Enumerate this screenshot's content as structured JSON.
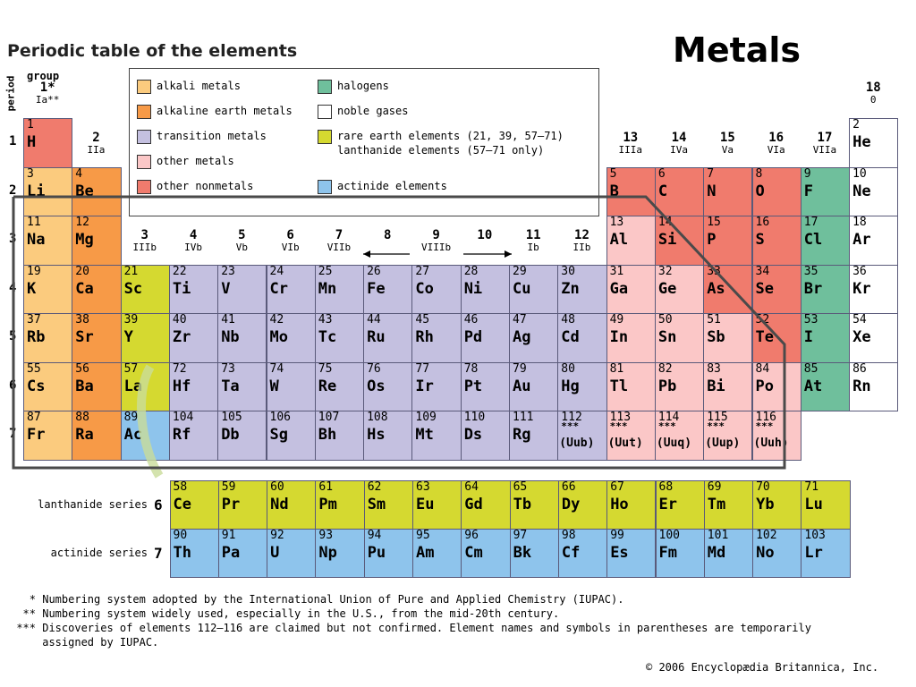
{
  "title": "Periodic table of the elements",
  "heading": "Metals",
  "labels": {
    "period": "period",
    "group": "group"
  },
  "colors": {
    "alkali": "#fbcb7e",
    "alkaline": "#f79a47",
    "transition": "#c4c0e0",
    "other_metal": "#fbc7c7",
    "nonmetal": "#f07b6d",
    "halogen": "#6fbf9c",
    "noble": "#ffffff",
    "rare": "#d5d930",
    "actinide": "#8ec4ec"
  },
  "legend": [
    {
      "key": "alkali",
      "label": "alkali metals"
    },
    {
      "key": "alkaline",
      "label": "alkaline earth metals"
    },
    {
      "key": "transition",
      "label": "transition metals"
    },
    {
      "key": "other_metal",
      "label": "other metals"
    },
    {
      "key": "nonmetal",
      "label": "other nonmetals"
    },
    {
      "key": "halogen",
      "label": "halogens"
    },
    {
      "key": "noble",
      "label": "noble gases"
    },
    {
      "key": "rare",
      "label": "rare earth elements (21, 39, 57–71)",
      "label2": "lanthanide elements (57–71 only)"
    },
    {
      "key": "actinide",
      "label": "actinide elements"
    }
  ],
  "groups": [
    {
      "n": "1*",
      "r": "Ia**"
    },
    {
      "n": "2",
      "r": "IIa"
    },
    {
      "n": "3",
      "r": "IIIb"
    },
    {
      "n": "4",
      "r": "IVb"
    },
    {
      "n": "5",
      "r": "Vb"
    },
    {
      "n": "6",
      "r": "VIb"
    },
    {
      "n": "7",
      "r": "VIIb"
    },
    {
      "n": "8",
      "r": ""
    },
    {
      "n": "9",
      "r": "VIIIb"
    },
    {
      "n": "10",
      "r": ""
    },
    {
      "n": "11",
      "r": "Ib"
    },
    {
      "n": "12",
      "r": "IIb"
    },
    {
      "n": "13",
      "r": "IIIa"
    },
    {
      "n": "14",
      "r": "IVa"
    },
    {
      "n": "15",
      "r": "Va"
    },
    {
      "n": "16",
      "r": "VIa"
    },
    {
      "n": "17",
      "r": "VIIa"
    },
    {
      "n": "18",
      "r": "0"
    }
  ],
  "periods": [
    "1",
    "2",
    "3",
    "4",
    "5",
    "6",
    "7"
  ],
  "elements": [
    {
      "z": "1",
      "s": "H",
      "row": 1,
      "col": 1,
      "c": "nonmetal"
    },
    {
      "z": "2",
      "s": "He",
      "row": 1,
      "col": 18,
      "c": "noble"
    },
    {
      "z": "3",
      "s": "Li",
      "row": 2,
      "col": 1,
      "c": "alkali"
    },
    {
      "z": "4",
      "s": "Be",
      "row": 2,
      "col": 2,
      "c": "alkaline"
    },
    {
      "z": "5",
      "s": "B",
      "row": 2,
      "col": 13,
      "c": "nonmetal"
    },
    {
      "z": "6",
      "s": "C",
      "row": 2,
      "col": 14,
      "c": "nonmetal"
    },
    {
      "z": "7",
      "s": "N",
      "row": 2,
      "col": 15,
      "c": "nonmetal"
    },
    {
      "z": "8",
      "s": "O",
      "row": 2,
      "col": 16,
      "c": "nonmetal"
    },
    {
      "z": "9",
      "s": "F",
      "row": 2,
      "col": 17,
      "c": "halogen"
    },
    {
      "z": "10",
      "s": "Ne",
      "row": 2,
      "col": 18,
      "c": "noble"
    },
    {
      "z": "11",
      "s": "Na",
      "row": 3,
      "col": 1,
      "c": "alkali"
    },
    {
      "z": "12",
      "s": "Mg",
      "row": 3,
      "col": 2,
      "c": "alkaline"
    },
    {
      "z": "13",
      "s": "Al",
      "row": 3,
      "col": 13,
      "c": "other_metal"
    },
    {
      "z": "14",
      "s": "Si",
      "row": 3,
      "col": 14,
      "c": "nonmetal"
    },
    {
      "z": "15",
      "s": "P",
      "row": 3,
      "col": 15,
      "c": "nonmetal"
    },
    {
      "z": "16",
      "s": "S",
      "row": 3,
      "col": 16,
      "c": "nonmetal"
    },
    {
      "z": "17",
      "s": "Cl",
      "row": 3,
      "col": 17,
      "c": "halogen"
    },
    {
      "z": "18",
      "s": "Ar",
      "row": 3,
      "col": 18,
      "c": "noble"
    },
    {
      "z": "19",
      "s": "K",
      "row": 4,
      "col": 1,
      "c": "alkali"
    },
    {
      "z": "20",
      "s": "Ca",
      "row": 4,
      "col": 2,
      "c": "alkaline"
    },
    {
      "z": "21",
      "s": "Sc",
      "row": 4,
      "col": 3,
      "c": "rare"
    },
    {
      "z": "22",
      "s": "Ti",
      "row": 4,
      "col": 4,
      "c": "transition"
    },
    {
      "z": "23",
      "s": "V",
      "row": 4,
      "col": 5,
      "c": "transition"
    },
    {
      "z": "24",
      "s": "Cr",
      "row": 4,
      "col": 6,
      "c": "transition"
    },
    {
      "z": "25",
      "s": "Mn",
      "row": 4,
      "col": 7,
      "c": "transition"
    },
    {
      "z": "26",
      "s": "Fe",
      "row": 4,
      "col": 8,
      "c": "transition"
    },
    {
      "z": "27",
      "s": "Co",
      "row": 4,
      "col": 9,
      "c": "transition"
    },
    {
      "z": "28",
      "s": "Ni",
      "row": 4,
      "col": 10,
      "c": "transition"
    },
    {
      "z": "29",
      "s": "Cu",
      "row": 4,
      "col": 11,
      "c": "transition"
    },
    {
      "z": "30",
      "s": "Zn",
      "row": 4,
      "col": 12,
      "c": "transition"
    },
    {
      "z": "31",
      "s": "Ga",
      "row": 4,
      "col": 13,
      "c": "other_metal"
    },
    {
      "z": "32",
      "s": "Ge",
      "row": 4,
      "col": 14,
      "c": "other_metal"
    },
    {
      "z": "33",
      "s": "As",
      "row": 4,
      "col": 15,
      "c": "nonmetal"
    },
    {
      "z": "34",
      "s": "Se",
      "row": 4,
      "col": 16,
      "c": "nonmetal"
    },
    {
      "z": "35",
      "s": "Br",
      "row": 4,
      "col": 17,
      "c": "halogen"
    },
    {
      "z": "36",
      "s": "Kr",
      "row": 4,
      "col": 18,
      "c": "noble"
    },
    {
      "z": "37",
      "s": "Rb",
      "row": 5,
      "col": 1,
      "c": "alkali"
    },
    {
      "z": "38",
      "s": "Sr",
      "row": 5,
      "col": 2,
      "c": "alkaline"
    },
    {
      "z": "39",
      "s": "Y",
      "row": 5,
      "col": 3,
      "c": "rare"
    },
    {
      "z": "40",
      "s": "Zr",
      "row": 5,
      "col": 4,
      "c": "transition"
    },
    {
      "z": "41",
      "s": "Nb",
      "row": 5,
      "col": 5,
      "c": "transition"
    },
    {
      "z": "42",
      "s": "Mo",
      "row": 5,
      "col": 6,
      "c": "transition"
    },
    {
      "z": "43",
      "s": "Tc",
      "row": 5,
      "col": 7,
      "c": "transition"
    },
    {
      "z": "44",
      "s": "Ru",
      "row": 5,
      "col": 8,
      "c": "transition"
    },
    {
      "z": "45",
      "s": "Rh",
      "row": 5,
      "col": 9,
      "c": "transition"
    },
    {
      "z": "46",
      "s": "Pd",
      "row": 5,
      "col": 10,
      "c": "transition"
    },
    {
      "z": "47",
      "s": "Ag",
      "row": 5,
      "col": 11,
      "c": "transition"
    },
    {
      "z": "48",
      "s": "Cd",
      "row": 5,
      "col": 12,
      "c": "transition"
    },
    {
      "z": "49",
      "s": "In",
      "row": 5,
      "col": 13,
      "c": "other_metal"
    },
    {
      "z": "50",
      "s": "Sn",
      "row": 5,
      "col": 14,
      "c": "other_metal"
    },
    {
      "z": "51",
      "s": "Sb",
      "row": 5,
      "col": 15,
      "c": "other_metal"
    },
    {
      "z": "52",
      "s": "Te",
      "row": 5,
      "col": 16,
      "c": "nonmetal"
    },
    {
      "z": "53",
      "s": "I",
      "row": 5,
      "col": 17,
      "c": "halogen"
    },
    {
      "z": "54",
      "s": "Xe",
      "row": 5,
      "col": 18,
      "c": "noble"
    },
    {
      "z": "55",
      "s": "Cs",
      "row": 6,
      "col": 1,
      "c": "alkali"
    },
    {
      "z": "56",
      "s": "Ba",
      "row": 6,
      "col": 2,
      "c": "alkaline"
    },
    {
      "z": "57",
      "s": "La",
      "row": 6,
      "col": 3,
      "c": "rare"
    },
    {
      "z": "72",
      "s": "Hf",
      "row": 6,
      "col": 4,
      "c": "transition"
    },
    {
      "z": "73",
      "s": "Ta",
      "row": 6,
      "col": 5,
      "c": "transition"
    },
    {
      "z": "74",
      "s": "W",
      "row": 6,
      "col": 6,
      "c": "transition"
    },
    {
      "z": "75",
      "s": "Re",
      "row": 6,
      "col": 7,
      "c": "transition"
    },
    {
      "z": "76",
      "s": "Os",
      "row": 6,
      "col": 8,
      "c": "transition"
    },
    {
      "z": "77",
      "s": "Ir",
      "row": 6,
      "col": 9,
      "c": "transition"
    },
    {
      "z": "78",
      "s": "Pt",
      "row": 6,
      "col": 10,
      "c": "transition"
    },
    {
      "z": "79",
      "s": "Au",
      "row": 6,
      "col": 11,
      "c": "transition"
    },
    {
      "z": "80",
      "s": "Hg",
      "row": 6,
      "col": 12,
      "c": "transition"
    },
    {
      "z": "81",
      "s": "Tl",
      "row": 6,
      "col": 13,
      "c": "other_metal"
    },
    {
      "z": "82",
      "s": "Pb",
      "row": 6,
      "col": 14,
      "c": "other_metal"
    },
    {
      "z": "83",
      "s": "Bi",
      "row": 6,
      "col": 15,
      "c": "other_metal"
    },
    {
      "z": "84",
      "s": "Po",
      "row": 6,
      "col": 16,
      "c": "other_metal"
    },
    {
      "z": "85",
      "s": "At",
      "row": 6,
      "col": 17,
      "c": "halogen"
    },
    {
      "z": "86",
      "s": "Rn",
      "row": 6,
      "col": 18,
      "c": "noble"
    },
    {
      "z": "87",
      "s": "Fr",
      "row": 7,
      "col": 1,
      "c": "alkali"
    },
    {
      "z": "88",
      "s": "Ra",
      "row": 7,
      "col": 2,
      "c": "alkaline"
    },
    {
      "z": "89",
      "s": "Ac",
      "row": 7,
      "col": 3,
      "c": "actinide"
    },
    {
      "z": "104",
      "s": "Rf",
      "row": 7,
      "col": 4,
      "c": "transition"
    },
    {
      "z": "105",
      "s": "Db",
      "row": 7,
      "col": 5,
      "c": "transition"
    },
    {
      "z": "106",
      "s": "Sg",
      "row": 7,
      "col": 6,
      "c": "transition"
    },
    {
      "z": "107",
      "s": "Bh",
      "row": 7,
      "col": 7,
      "c": "transition"
    },
    {
      "z": "108",
      "s": "Hs",
      "row": 7,
      "col": 8,
      "c": "transition"
    },
    {
      "z": "109",
      "s": "Mt",
      "row": 7,
      "col": 9,
      "c": "transition"
    },
    {
      "z": "110",
      "s": "Ds",
      "row": 7,
      "col": 10,
      "c": "transition"
    },
    {
      "z": "111",
      "s": "Rg",
      "row": 7,
      "col": 11,
      "c": "transition"
    },
    {
      "z": "112",
      "s": "(Uub)",
      "row": 7,
      "col": 12,
      "c": "transition",
      "u": true
    },
    {
      "z": "113",
      "s": "(Uut)",
      "row": 7,
      "col": 13,
      "c": "other_metal",
      "u": true
    },
    {
      "z": "114",
      "s": "(Uuq)",
      "row": 7,
      "col": 14,
      "c": "other_metal",
      "u": true
    },
    {
      "z": "115",
      "s": "(Uup)",
      "row": 7,
      "col": 15,
      "c": "other_metal",
      "u": true
    },
    {
      "z": "116",
      "s": "(Uuh)",
      "row": 7,
      "col": 16,
      "c": "other_metal",
      "u": true
    }
  ],
  "unconfirmed_mark": "***",
  "series": [
    {
      "label": "lanthanide series",
      "num": "6",
      "c": "rare",
      "el": [
        [
          "58",
          "Ce"
        ],
        [
          "59",
          "Pr"
        ],
        [
          "60",
          "Nd"
        ],
        [
          "61",
          "Pm"
        ],
        [
          "62",
          "Sm"
        ],
        [
          "63",
          "Eu"
        ],
        [
          "64",
          "Gd"
        ],
        [
          "65",
          "Tb"
        ],
        [
          "66",
          "Dy"
        ],
        [
          "67",
          "Ho"
        ],
        [
          "68",
          "Er"
        ],
        [
          "69",
          "Tm"
        ],
        [
          "70",
          "Yb"
        ],
        [
          "71",
          "Lu"
        ]
      ]
    },
    {
      "label": "actinide series",
      "num": "7",
      "c": "actinide",
      "el": [
        [
          "90",
          "Th"
        ],
        [
          "91",
          "Pa"
        ],
        [
          "92",
          "U"
        ],
        [
          "93",
          "Np"
        ],
        [
          "94",
          "Pu"
        ],
        [
          "95",
          "Am"
        ],
        [
          "96",
          "Cm"
        ],
        [
          "97",
          "Bk"
        ],
        [
          "98",
          "Cf"
        ],
        [
          "99",
          "Es"
        ],
        [
          "100",
          "Fm"
        ],
        [
          "101",
          "Md"
        ],
        [
          "102",
          "No"
        ],
        [
          "103",
          "Lr"
        ]
      ]
    }
  ],
  "footnotes": [
    {
      "mark": "*",
      "text": "Numbering system adopted by the International Union of Pure and Applied Chemistry (IUPAC)."
    },
    {
      "mark": "**",
      "text": "Numbering system widely used, especially in the U.S., from the mid-20th century."
    },
    {
      "mark": "***",
      "text": "Discoveries of elements 112–116 are claimed but not confirmed. Element names and symbols in parentheses are temporarily"
    },
    {
      "mark": "",
      "text": "assigned by IUPAC."
    }
  ],
  "copyright": "© 2006 Encyclopædia Britannica, Inc."
}
